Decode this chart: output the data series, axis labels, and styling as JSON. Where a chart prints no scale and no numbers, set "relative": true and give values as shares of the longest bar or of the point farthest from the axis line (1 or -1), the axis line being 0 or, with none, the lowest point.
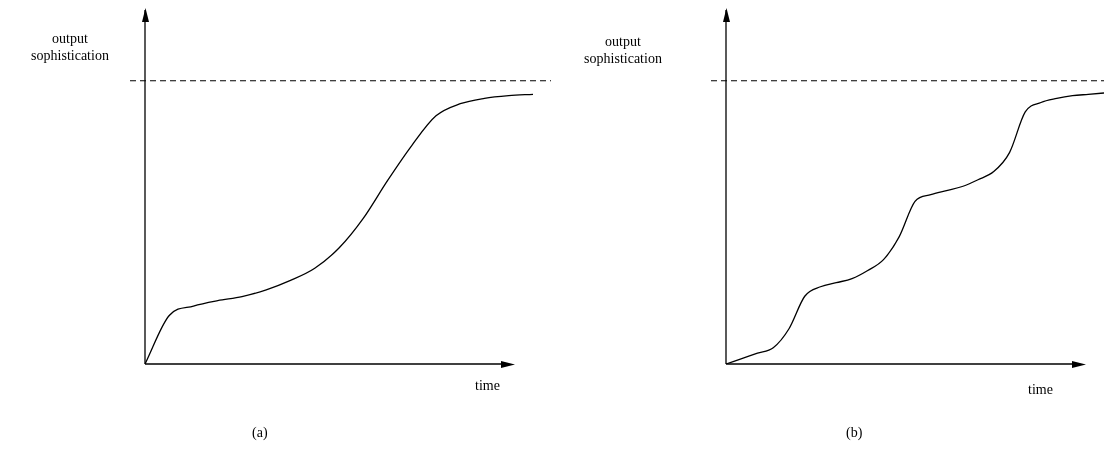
{
  "chart_data": [
    {
      "type": "line",
      "relative": true,
      "xlabel": "time",
      "ylabel": "output\nsophistication",
      "annotations": [
        "(a)"
      ],
      "marker": "none",
      "line_style": "solid",
      "tick_labels": false,
      "grid": false,
      "legend": false,
      "categories": [
        null,
        null,
        null,
        null,
        null,
        null,
        null,
        null,
        null,
        null,
        null,
        null,
        null,
        null,
        null,
        null,
        null
      ],
      "series": [
        {
          "color": "#000000",
          "values": [
            0,
            0.18,
            0.215,
            0.235,
            0.25,
            0.275,
            0.31,
            0.355,
            0.43,
            0.54,
            0.68,
            0.81,
            0.92,
            0.965,
            0.985,
            0.995,
            1
          ]
        }
      ],
      "ref_lines": [
        {
          "axis": "y",
          "value": 1.05,
          "color": "#000000",
          "line_style": "dashed"
        }
      ]
    },
    {
      "type": "line",
      "relative": true,
      "xlabel": "time",
      "ylabel": "output\nsophistication",
      "annotations": [
        "(b)"
      ],
      "marker": "none",
      "line_style": "solid",
      "tick_labels": false,
      "grid": false,
      "legend": false,
      "categories": [
        null,
        null,
        null,
        null,
        null,
        null,
        null,
        null,
        null,
        null,
        null,
        null,
        null,
        null,
        null,
        null,
        null,
        null,
        null,
        null,
        null,
        null,
        null,
        null,
        null
      ],
      "series": [
        {
          "color": "#000000",
          "values": [
            0,
            0.02,
            0.04,
            0.06,
            0.13,
            0.25,
            0.285,
            0.3,
            0.315,
            0.345,
            0.385,
            0.47,
            0.6,
            0.625,
            0.64,
            0.655,
            0.68,
            0.71,
            0.78,
            0.93,
            0.965,
            0.98,
            0.99,
            0.995,
            1
          ]
        }
      ],
      "ref_lines": [
        {
          "axis": "y",
          "value": 1.045,
          "color": "#000000",
          "line_style": "dashed"
        }
      ]
    }
  ]
}
